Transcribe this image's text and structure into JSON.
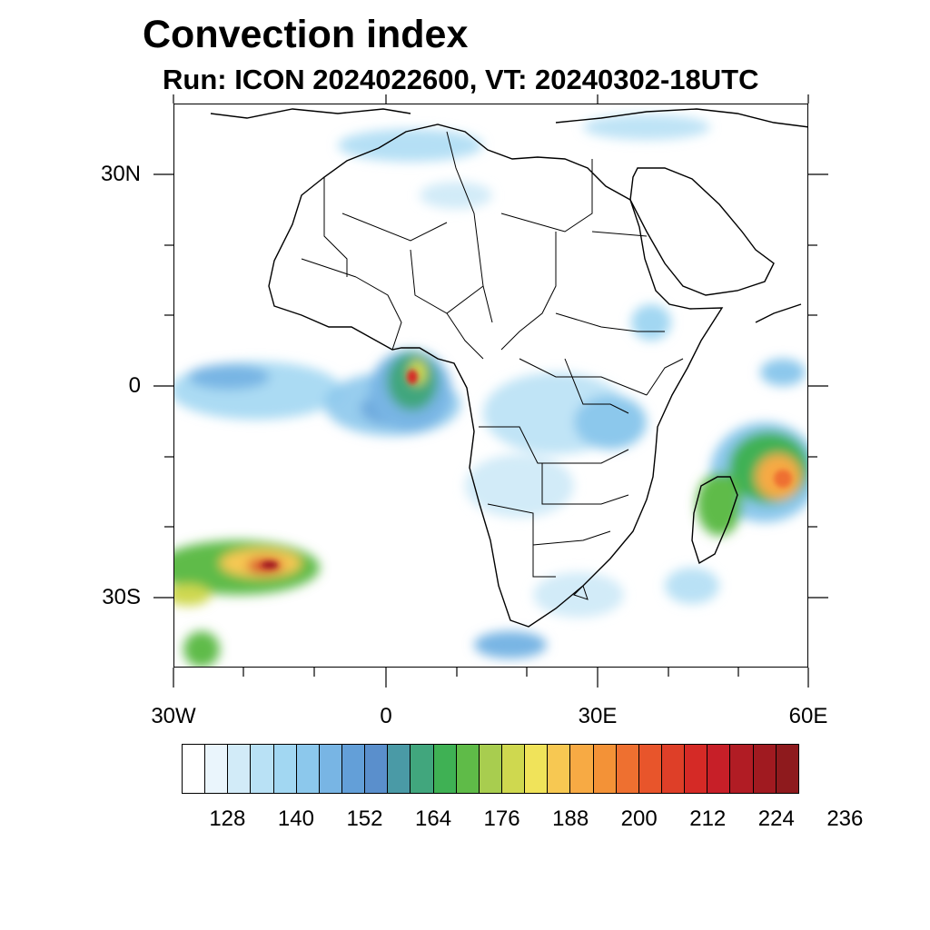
{
  "title": "Convection index",
  "subtitle": "Run: ICON 2024022600,  VT: 20240302-18UTC",
  "map": {
    "lon_range": [
      -30,
      60
    ],
    "lat_range": [
      -40,
      40
    ],
    "x_tick_labels": [
      "30W",
      "0",
      "30E",
      "60E"
    ],
    "y_tick_labels": [
      "30N",
      "0",
      "30S"
    ],
    "region": "Africa"
  },
  "colorbar": {
    "labels": [
      "128",
      "140",
      "152",
      "164",
      "176",
      "188",
      "200",
      "212",
      "224",
      "236"
    ],
    "colors": [
      "#ffffff",
      "#eaf5fc",
      "#d2ebf8",
      "#b9e1f5",
      "#a2d7f2",
      "#8cc8ec",
      "#78b5e4",
      "#639fd8",
      "#5a8fcc",
      "#4a9aa6",
      "#41a67d",
      "#3fb154",
      "#5fbb48",
      "#a8cd4f",
      "#cfd84f",
      "#f0e35a",
      "#f7c852",
      "#f7aa44",
      "#f39237",
      "#ee7030",
      "#e8552b",
      "#de3f28",
      "#d52a26",
      "#c71f28",
      "#b11c24",
      "#a01a20",
      "#8e1a1d"
    ]
  }
}
